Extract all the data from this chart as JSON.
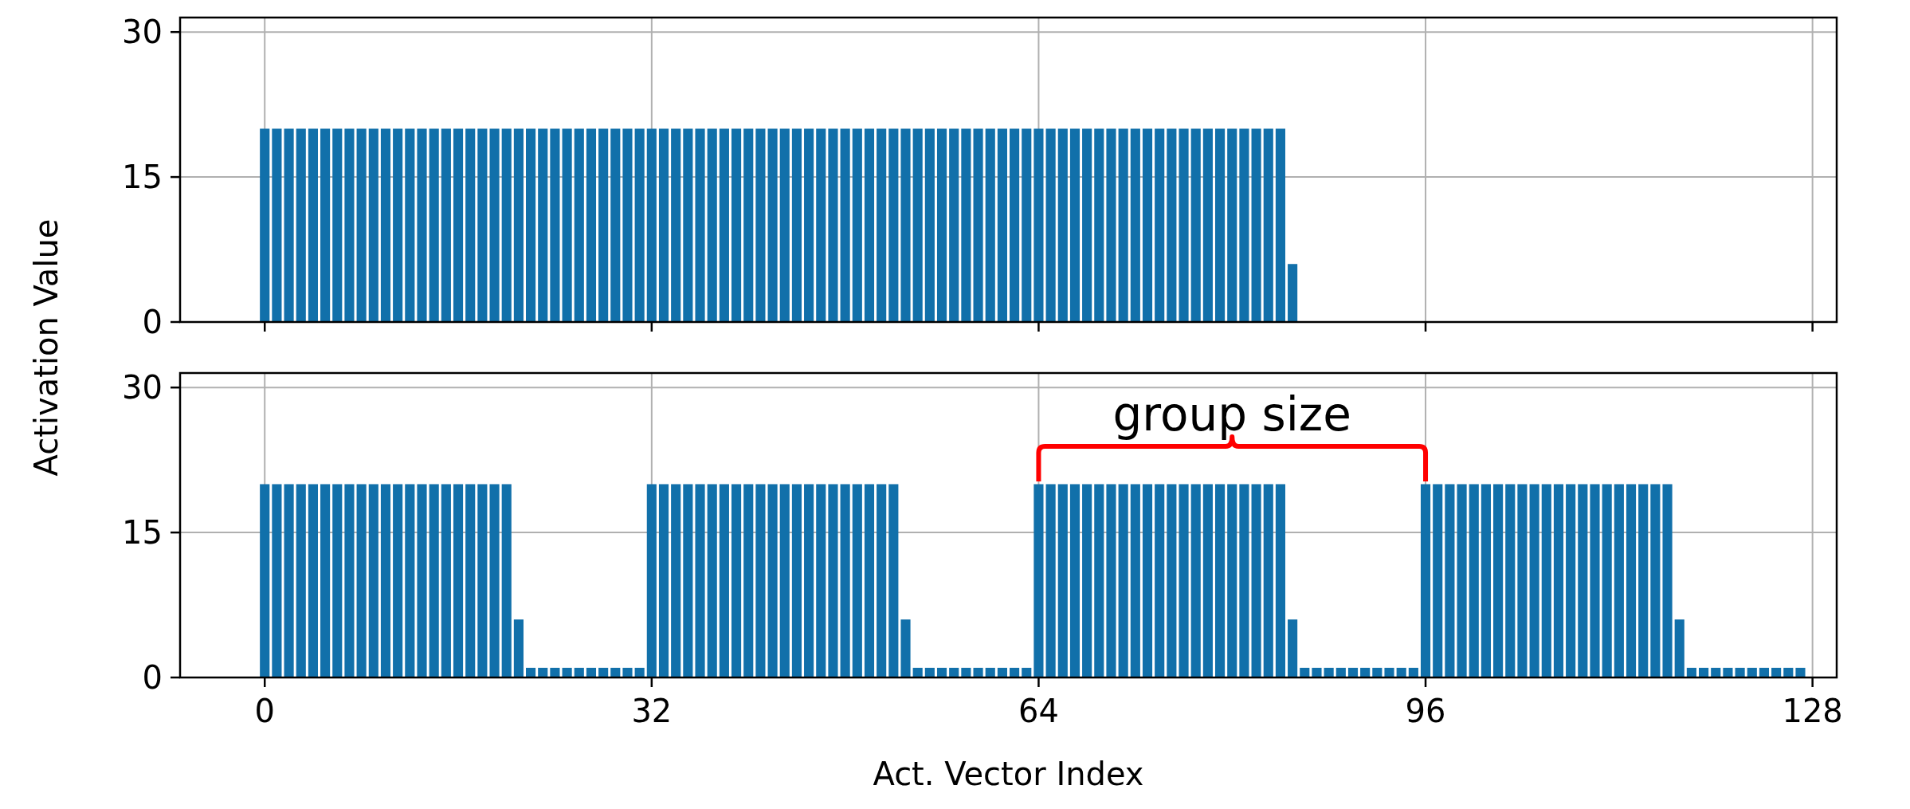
{
  "chart_data": [
    {
      "type": "bar",
      "ylabel": "Activation Value",
      "x": [
        0,
        1,
        2,
        3,
        4,
        5,
        6,
        7,
        8,
        9,
        10,
        11,
        12,
        13,
        14,
        15,
        16,
        17,
        18,
        19,
        20,
        21,
        22,
        23,
        24,
        25,
        26,
        27,
        28,
        29,
        30,
        31,
        32,
        33,
        34,
        35,
        36,
        37,
        38,
        39,
        40,
        41,
        42,
        43,
        44,
        45,
        46,
        47,
        48,
        49,
        50,
        51,
        52,
        53,
        54,
        55,
        56,
        57,
        58,
        59,
        60,
        61,
        62,
        63,
        64,
        65,
        66,
        67,
        68,
        69,
        70,
        71,
        72,
        73,
        74,
        75,
        76,
        77,
        78,
        79,
        80,
        81,
        82,
        83,
        84,
        85,
        86,
        87,
        88,
        89,
        90,
        91,
        92,
        93,
        94,
        95,
        96,
        97,
        98,
        99,
        100,
        101,
        102,
        103,
        104,
        105,
        106,
        107,
        108,
        109,
        110,
        111,
        112,
        113,
        114,
        115,
        116,
        117,
        118,
        119,
        120,
        121,
        122,
        123,
        124,
        125,
        126,
        127
      ],
      "values": [
        20,
        20,
        20,
        20,
        20,
        20,
        20,
        20,
        20,
        20,
        20,
        20,
        20,
        20,
        20,
        20,
        20,
        20,
        20,
        20,
        20,
        20,
        20,
        20,
        20,
        20,
        20,
        20,
        20,
        20,
        20,
        20,
        20,
        20,
        20,
        20,
        20,
        20,
        20,
        20,
        20,
        20,
        20,
        20,
        20,
        20,
        20,
        20,
        20,
        20,
        20,
        20,
        20,
        20,
        20,
        20,
        20,
        20,
        20,
        20,
        20,
        20,
        20,
        20,
        20,
        20,
        20,
        20,
        20,
        20,
        20,
        20,
        20,
        20,
        20,
        20,
        20,
        20,
        20,
        20,
        20,
        20,
        20,
        20,
        20,
        6,
        0,
        0,
        0,
        0,
        0,
        0,
        0,
        0,
        0,
        0,
        0,
        0,
        0,
        0,
        0,
        0,
        0,
        0,
        0,
        0,
        0,
        0,
        0,
        0,
        0,
        0,
        0,
        0,
        0,
        0,
        0,
        0,
        0,
        0,
        0,
        0,
        0,
        0,
        0,
        0,
        0,
        0
      ],
      "color": "#1170aa",
      "xlim": [
        -7,
        130
      ],
      "xticks": [
        0,
        32,
        64,
        96,
        128
      ],
      "ylim": [
        0,
        31.5
      ],
      "yticks": [
        0,
        15,
        30
      ],
      "grid": true,
      "tick_labels": "y"
    },
    {
      "type": "bar",
      "xlabel": "Act. Vector Index",
      "x": [
        0,
        1,
        2,
        3,
        4,
        5,
        6,
        7,
        8,
        9,
        10,
        11,
        12,
        13,
        14,
        15,
        16,
        17,
        18,
        19,
        20,
        21,
        22,
        23,
        24,
        25,
        26,
        27,
        28,
        29,
        30,
        31,
        32,
        33,
        34,
        35,
        36,
        37,
        38,
        39,
        40,
        41,
        42,
        43,
        44,
        45,
        46,
        47,
        48,
        49,
        50,
        51,
        52,
        53,
        54,
        55,
        56,
        57,
        58,
        59,
        60,
        61,
        62,
        63,
        64,
        65,
        66,
        67,
        68,
        69,
        70,
        71,
        72,
        73,
        74,
        75,
        76,
        77,
        78,
        79,
        80,
        81,
        82,
        83,
        84,
        85,
        86,
        87,
        88,
        89,
        90,
        91,
        92,
        93,
        94,
        95,
        96,
        97,
        98,
        99,
        100,
        101,
        102,
        103,
        104,
        105,
        106,
        107,
        108,
        109,
        110,
        111,
        112,
        113,
        114,
        115,
        116,
        117,
        118,
        119,
        120,
        121,
        122,
        123,
        124,
        125,
        126,
        127
      ],
      "values": [
        20,
        20,
        20,
        20,
        20,
        20,
        20,
        20,
        20,
        20,
        20,
        20,
        20,
        20,
        20,
        20,
        20,
        20,
        20,
        20,
        20,
        6,
        1,
        1,
        1,
        1,
        1,
        1,
        1,
        1,
        1,
        1,
        20,
        20,
        20,
        20,
        20,
        20,
        20,
        20,
        20,
        20,
        20,
        20,
        20,
        20,
        20,
        20,
        20,
        20,
        20,
        20,
        20,
        6,
        1,
        1,
        1,
        1,
        1,
        1,
        1,
        1,
        1,
        1,
        20,
        20,
        20,
        20,
        20,
        20,
        20,
        20,
        20,
        20,
        20,
        20,
        20,
        20,
        20,
        20,
        20,
        20,
        20,
        20,
        20,
        6,
        1,
        1,
        1,
        1,
        1,
        1,
        1,
        1,
        1,
        1,
        20,
        20,
        20,
        20,
        20,
        20,
        20,
        20,
        20,
        20,
        20,
        20,
        20,
        20,
        20,
        20,
        20,
        20,
        20,
        20,
        20,
        6,
        1,
        1,
        1,
        1,
        1,
        1,
        1,
        1,
        1,
        1
      ],
      "color": "#1170aa",
      "xlim": [
        -7,
        130
      ],
      "xticks": [
        0,
        32,
        64,
        96,
        128
      ],
      "ylim": [
        0,
        31.5
      ],
      "yticks": [
        0,
        15,
        30
      ],
      "grid": true,
      "annotations": [
        "group size"
      ]
    }
  ]
}
